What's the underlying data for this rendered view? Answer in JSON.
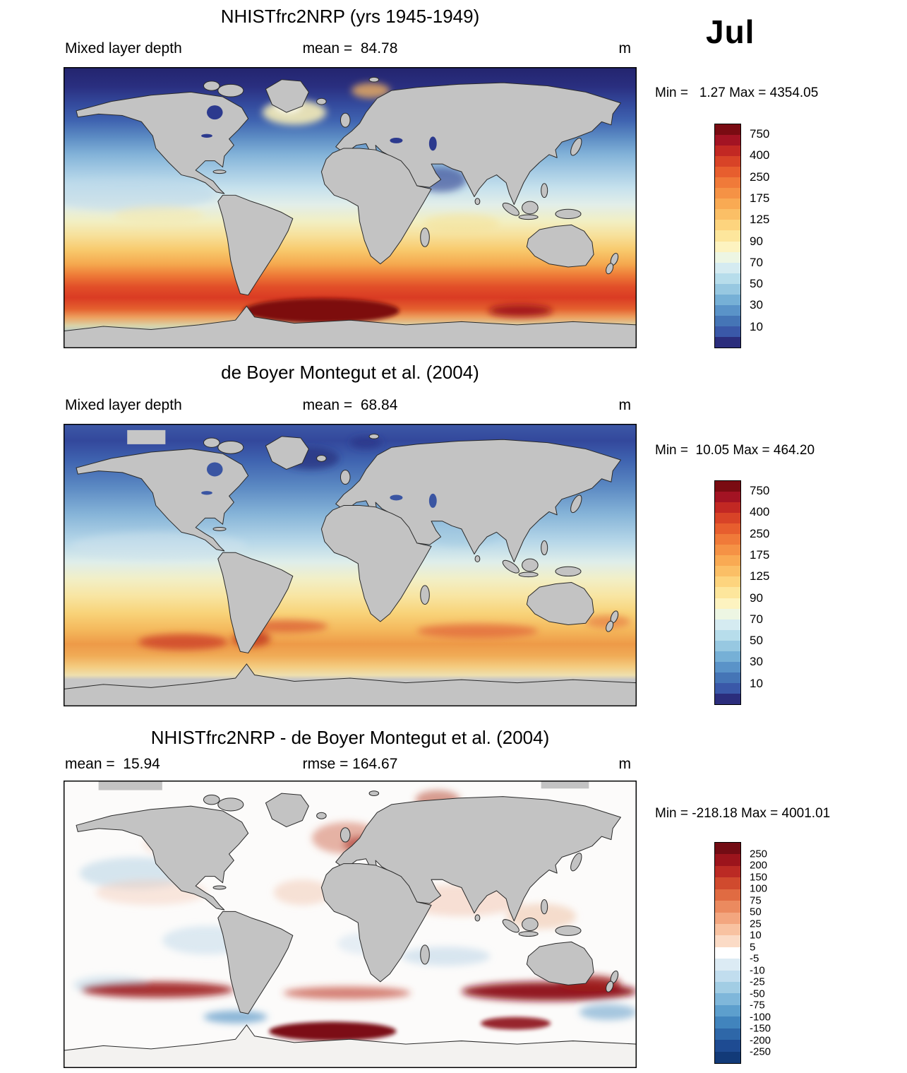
{
  "figure": {
    "month_label": "Jul",
    "units": "m"
  },
  "panels": [
    {
      "title": "NHISTfrc2NRP (yrs 1945-1949)",
      "left_label": "Mixed layer depth",
      "center_label": "mean =  84.78",
      "units_label": "m",
      "stats_label": "Min =   1.27 Max = 4354.05",
      "colorbar": {
        "labels": [
          "750",
          "400",
          "250",
          "175",
          "125",
          "90",
          "70",
          "50",
          "30",
          "10"
        ],
        "colors": [
          "#7a0b12",
          "#a31323",
          "#c22823",
          "#d84327",
          "#e75e2e",
          "#f07a39",
          "#f59245",
          "#f9aa53",
          "#fbbf66",
          "#fdd47e",
          "#fde69c",
          "#fdf3c0",
          "#edf6e3",
          "#d5ebf1",
          "#b7ddeb",
          "#97c8e1",
          "#76b0d6",
          "#5a93c8",
          "#4575b6",
          "#3a58a8",
          "#2b2d7c"
        ]
      }
    },
    {
      "title": "de Boyer Montegut et al. (2004)",
      "left_label": "Mixed layer depth",
      "center_label": "mean =  68.84",
      "units_label": "m",
      "stats_label": "Min =  10.05 Max = 464.20",
      "colorbar": {
        "labels": [
          "750",
          "400",
          "250",
          "175",
          "125",
          "90",
          "70",
          "50",
          "30",
          "10"
        ],
        "colors": [
          "#7a0b12",
          "#a31323",
          "#c22823",
          "#d84327",
          "#e75e2e",
          "#f07a39",
          "#f59245",
          "#f9aa53",
          "#fbbf66",
          "#fdd47e",
          "#fde69c",
          "#fdf3c0",
          "#edf6e3",
          "#d5ebf1",
          "#b7ddeb",
          "#97c8e1",
          "#76b0d6",
          "#5a93c8",
          "#4575b6",
          "#3a58a8",
          "#2b2d7c"
        ]
      }
    },
    {
      "title": "NHISTfrc2NRP - de Boyer Montegut et al. (2004)",
      "left_label": "mean =  15.94",
      "center_label": "rmse = 164.67",
      "units_label": "m",
      "stats_label": "Min = -218.18 Max = 4001.01",
      "colorbar": {
        "labels": [
          "250",
          "200",
          "150",
          "100",
          "75",
          "50",
          "25",
          "10",
          "5",
          "-5",
          "-10",
          "-25",
          "-50",
          "-75",
          "-100",
          "-150",
          "-200",
          "-250"
        ],
        "colors": [
          "#730c14",
          "#9c141c",
          "#bb2a24",
          "#d04a2e",
          "#e06b42",
          "#eb8a5f",
          "#f3a67f",
          "#f8c2a1",
          "#fbdbc6",
          "#ffffff",
          "#dcebf4",
          "#c1ddee",
          "#a2cde4",
          "#7fb7da",
          "#5d9fcd",
          "#4184bd",
          "#2e67a8",
          "#1e4b92",
          "#123a78"
        ]
      }
    }
  ],
  "chart_data": [
    {
      "type": "heatmap",
      "title": "NHISTfrc2NRP (yrs 1945-1949)",
      "variable": "Mixed layer depth",
      "units": "m",
      "month": "Jul",
      "domain": "global ocean, equirectangular lat-lon world map, gray land",
      "mean": 84.78,
      "min": 1.27,
      "max": 4354.05,
      "contour_levels": [
        10,
        30,
        50,
        70,
        90,
        125,
        175,
        250,
        400,
        750
      ],
      "palette": "dark navy (shallow ~10 m) through blues, pale yellow, orange, red to dark maroon (deep >750 m)",
      "notable_features": "Shallow mixed layers (<30 m) across Arctic and northern summer oceans; deep winter mixed layers (175-750+ m) in a circumpolar Southern Ocean band 35S-60S; maroon maximum south of the Atlantic near Antarctica; bright shallow/convective patch in subpolar North Atlantic"
    },
    {
      "type": "heatmap",
      "title": "de Boyer Montegut et al. (2004)",
      "variable": "Mixed layer depth (observed climatology)",
      "units": "m",
      "month": "Jul",
      "domain": "global ocean, equirectangular lat-lon world map, gray land and gray no-data south of ~60S",
      "mean": 68.84,
      "min": 10.05,
      "max": 464.2,
      "contour_levels": [
        10,
        30,
        50,
        70,
        90,
        125,
        175,
        250,
        400,
        750
      ],
      "palette": "same scale as model panel: navy shallow to dark red deep",
      "notable_features": "Observed July climatology: shallow (10-50 m) Northern Hemisphere, yellow-orange band 100-400 m in Southern Ocean 35S-55S with red maxima SE of South America and central Indian sector; no data (gray) around Antarctica"
    },
    {
      "type": "heatmap",
      "title": "NHISTfrc2NRP - de Boyer Montegut et al. (2004)",
      "variable": "Mixed layer depth difference (model minus observations)",
      "units": "m",
      "month": "Jul",
      "domain": "global ocean, equirectangular lat-lon world map",
      "mean": 15.94,
      "rmse": 164.67,
      "min": -218.18,
      "max": 4001.01,
      "contour_levels": [
        -250,
        -200,
        -150,
        -100,
        -75,
        -50,
        -25,
        -10,
        -5,
        5,
        10,
        25,
        50,
        75,
        100,
        150,
        200,
        250
      ],
      "palette": "diverging: dark blue (-250) through white (near zero) to dark red (+250)",
      "notable_features": "Mostly small differences (white/light shades); model much deeper than observations (>+250 m, dark red) along Southern Ocean band ~45S-55S and near Antarctica; scattered weak negative (blue) patches in subtropical gyres"
    }
  ]
}
